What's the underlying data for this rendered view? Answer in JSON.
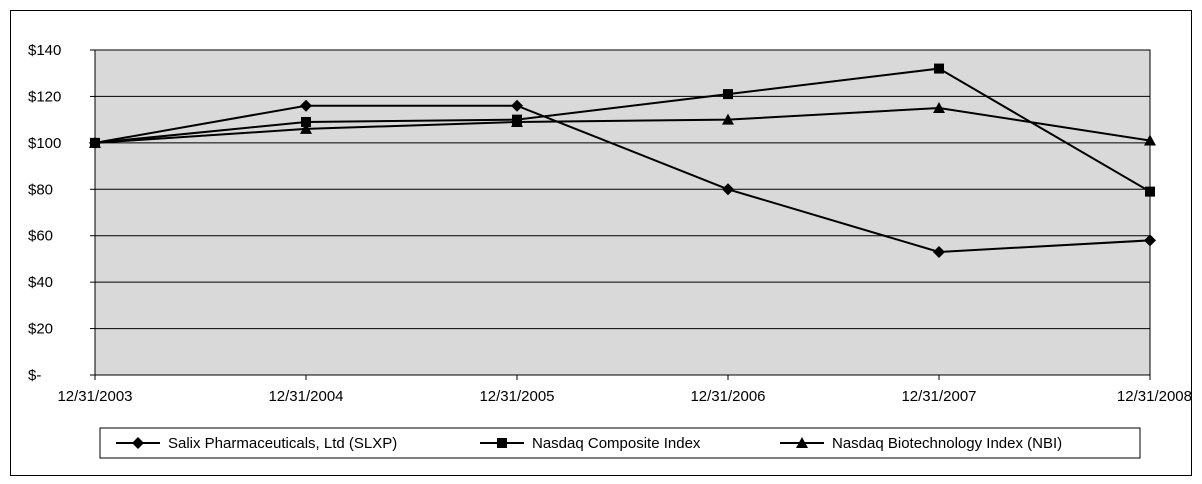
{
  "chart_data": {
    "type": "line",
    "title": "",
    "xlabel": "",
    "ylabel": "",
    "categories": [
      "12/31/2003",
      "12/31/2004",
      "12/31/2005",
      "12/31/2006",
      "12/31/2007",
      "12/31/2008"
    ],
    "y_tick_labels": [
      "$-",
      "$20",
      "$40",
      "$60",
      "$80",
      "$100",
      "$120",
      "$140"
    ],
    "y_ticks": [
      0,
      20,
      40,
      60,
      80,
      100,
      120,
      140
    ],
    "ylim": [
      0,
      140
    ],
    "grid": true,
    "legend_position": "bottom",
    "plot_background": "#d9d9d9",
    "line_color": "#000000",
    "series": [
      {
        "name": "Salix Pharmaceuticals, Ltd (SLXP)",
        "marker": "diamond",
        "values": [
          100,
          116,
          116,
          80,
          53,
          58
        ]
      },
      {
        "name": "Nasdaq Composite Index",
        "marker": "square",
        "values": [
          100,
          109,
          110,
          121,
          132,
          79
        ]
      },
      {
        "name": "Nasdaq Biotechnology Index (NBI)",
        "marker": "triangle",
        "values": [
          100,
          106,
          109,
          110,
          115,
          101
        ]
      }
    ]
  }
}
